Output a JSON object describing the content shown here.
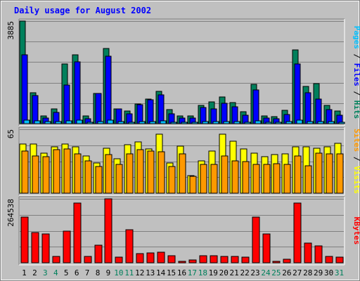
{
  "chart_data": {
    "type": "bar",
    "title": "Daily usage for August 2002",
    "categories": [
      "1",
      "2",
      "3",
      "4",
      "5",
      "6",
      "7",
      "8",
      "9",
      "10",
      "11",
      "12",
      "13",
      "14",
      "15",
      "16",
      "17",
      "18",
      "19",
      "20",
      "21",
      "22",
      "23",
      "24",
      "25",
      "26",
      "27",
      "28",
      "29",
      "30",
      "31"
    ],
    "weekend_days": [
      "3",
      "4",
      "10",
      "11",
      "17",
      "18",
      "24",
      "25",
      "31"
    ],
    "panels": [
      {
        "id": "hits-files-pages",
        "ymax": 3885,
        "ymax_label": "3885",
        "series": [
          {
            "name": "Hits",
            "color": "#00805c",
            "values": [
              3885,
              1180,
              280,
              560,
              2270,
              2610,
              280,
              1150,
              2850,
              560,
              480,
              740,
              930,
              1230,
              540,
              280,
              300,
              690,
              820,
              1020,
              800,
              460,
              1500,
              280,
              270,
              510,
              2790,
              1400,
              1530,
              680,
              480
            ]
          },
          {
            "name": "Files",
            "color": "#0000ff",
            "values": [
              2600,
              1060,
              210,
              430,
              1460,
              2350,
              190,
              1140,
              2560,
              560,
              380,
              720,
              910,
              1100,
              380,
              210,
              200,
              620,
              560,
              780,
              630,
              310,
              1270,
              220,
              190,
              350,
              2270,
              1180,
              940,
              530,
              330
            ]
          },
          {
            "name": "Pages",
            "color": "#00c0ff",
            "values": [
              130,
              110,
              70,
              90,
              100,
              120,
              60,
              90,
              130,
              70,
              60,
              80,
              90,
              110,
              60,
              50,
              40,
              70,
              80,
              90,
              80,
              60,
              100,
              50,
              50,
              70,
              120,
              90,
              90,
              70,
              60
            ]
          }
        ],
        "axis_label_parts": [
          {
            "text": "Pages",
            "color": "#00c0ff"
          },
          {
            "text": " / ",
            "color": "#000000"
          },
          {
            "text": "Files",
            "color": "#0000ff"
          },
          {
            "text": " / ",
            "color": "#000000"
          },
          {
            "text": "Hits",
            "color": "#00805c"
          }
        ]
      },
      {
        "id": "visits-sites",
        "ymax": 65,
        "ymax_label": "65",
        "series": [
          {
            "name": "Visits",
            "color": "#ffff00",
            "values": [
              50,
              50,
              41,
              47,
              50,
              47,
              38,
              31,
              46,
              35,
              49,
              52,
              45,
              60,
              31,
              48,
              18,
              33,
              43,
              60,
              53,
              45,
              41,
              37,
              39,
              40,
              47,
              47,
              46,
              47,
              51
            ]
          },
          {
            "name": "Sites",
            "color": "#ff9900",
            "values": [
              43,
              38,
              37,
              44,
              45,
              40,
              33,
              27,
              39,
              29,
              40,
              44,
              43,
              42,
              27,
              40,
              17,
              29,
              29,
              38,
              33,
              32,
              29,
              29,
              30,
              29,
              38,
              28,
              41,
              40,
              40
            ]
          }
        ],
        "axis_label_parts": [
          {
            "text": "Sites",
            "color": "#ff9900"
          },
          {
            "text": " / ",
            "color": "#000000"
          },
          {
            "text": "Visits",
            "color": "#ffff00"
          }
        ]
      },
      {
        "id": "kbytes",
        "ymax": 264538,
        "ymax_label": "264538",
        "series": [
          {
            "name": "KBytes",
            "color": "#ff0000",
            "values": [
              190000,
              125000,
              120000,
              25000,
              130000,
              248000,
              25000,
              73000,
              264538,
              22000,
              137000,
              38000,
              42000,
              45000,
              28000,
              7000,
              12000,
              30000,
              28000,
              27000,
              26000,
              22000,
              188000,
              120000,
              7000,
              14000,
              248000,
              80000,
              70000,
              25000,
              22000
            ]
          }
        ],
        "axis_label_parts": [
          {
            "text": "KBytes",
            "color": "#ff0000"
          }
        ]
      }
    ],
    "colors": {
      "background": "#c0c0c0",
      "plot_background": "#c0c0c0",
      "title": "#0000ff",
      "weekday_label": "#000000",
      "weekend_label": "#00805c"
    }
  }
}
